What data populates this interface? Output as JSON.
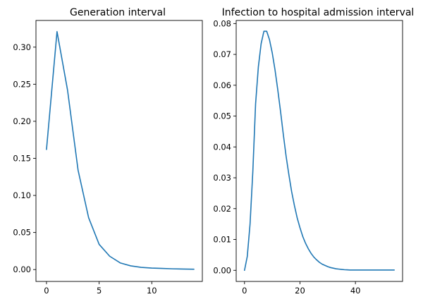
{
  "colors": {
    "series": "#1f77b4"
  },
  "chart_data": [
    {
      "type": "line",
      "title": "Generation interval",
      "xlabel": "",
      "ylabel": "",
      "xlim": [
        -1,
        14.8
      ],
      "ylim": [
        -0.016,
        0.336
      ],
      "grid": false,
      "xticks": [
        0,
        5,
        10
      ],
      "xtick_labels": [
        "0",
        "5",
        "10"
      ],
      "yticks": [
        0.0,
        0.05,
        0.1,
        0.15,
        0.2,
        0.25,
        0.3
      ],
      "ytick_labels": [
        "0.00",
        "0.05",
        "0.10",
        "0.15",
        "0.20",
        "0.25",
        "0.30"
      ],
      "x": [
        0,
        1,
        2,
        3,
        4,
        5,
        6,
        7,
        8,
        9,
        10,
        11,
        12,
        13,
        14
      ],
      "y": [
        0.162,
        0.321,
        0.242,
        0.134,
        0.07,
        0.034,
        0.018,
        0.009,
        0.005,
        0.003,
        0.002,
        0.0015,
        0.001,
        0.0007,
        0.0005
      ]
    },
    {
      "type": "line",
      "title": "Infection to hospital admission interval",
      "xlabel": "",
      "ylabel": "",
      "xlim": [
        -3,
        57
      ],
      "ylim": [
        -0.0036,
        0.081
      ],
      "grid": false,
      "xticks": [
        0,
        20,
        40
      ],
      "xtick_labels": [
        "0",
        "20",
        "40"
      ],
      "yticks": [
        0.0,
        0.01,
        0.02,
        0.03,
        0.04,
        0.05,
        0.06,
        0.07,
        0.08
      ],
      "ytick_labels": [
        "0.00",
        "0.01",
        "0.02",
        "0.03",
        "0.04",
        "0.05",
        "0.06",
        "0.07",
        "0.08"
      ],
      "x": [
        0,
        1,
        2,
        3,
        4,
        5,
        6,
        7,
        8,
        9,
        10,
        11,
        12,
        13,
        14,
        15,
        16,
        17,
        18,
        19,
        20,
        21,
        22,
        23,
        24,
        25,
        26,
        27,
        28,
        29,
        30,
        31,
        32,
        33,
        34,
        35,
        36,
        37,
        38,
        39,
        40,
        41,
        42,
        43,
        44,
        45,
        46,
        47,
        48,
        49,
        50,
        51,
        52,
        53,
        54
      ],
      "y": [
        0.0,
        0.0045,
        0.015,
        0.032,
        0.054,
        0.066,
        0.0735,
        0.0775,
        0.0775,
        0.0748,
        0.0705,
        0.065,
        0.0585,
        0.0515,
        0.044,
        0.037,
        0.031,
        0.0255,
        0.021,
        0.017,
        0.0138,
        0.011,
        0.0088,
        0.007,
        0.0055,
        0.0043,
        0.0034,
        0.0026,
        0.002,
        0.0016,
        0.0012,
        0.0009,
        0.0007,
        0.0005,
        0.0004,
        0.0003,
        0.0002,
        0.00015,
        0.0001,
        0.0001,
        0.0001,
        0.0001,
        0.0001,
        0.0001,
        0.0001,
        0.0001,
        0.0001,
        0.0001,
        0.0001,
        0.0001,
        0.0001,
        0.0001,
        0.0001,
        0.0001,
        0.0001
      ]
    }
  ]
}
